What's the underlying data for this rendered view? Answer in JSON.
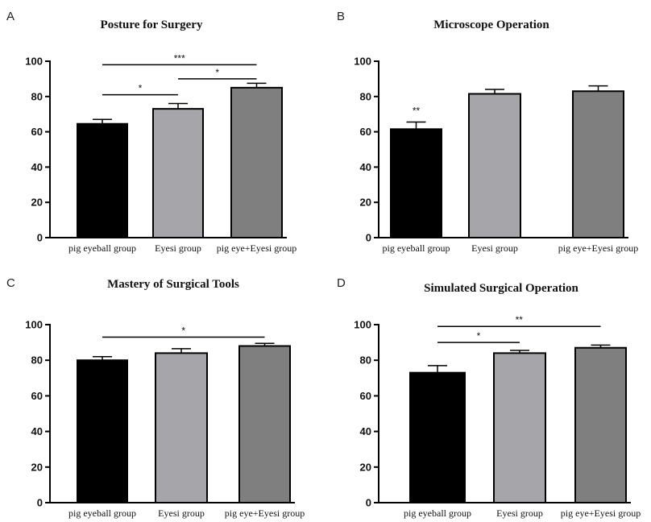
{
  "chart_data": [
    {
      "panel": "A",
      "type": "bar",
      "title": "Posture for Surgery",
      "categories": [
        "pig eyeball group",
        "Eyesi group",
        "pig eye+Eyesi group"
      ],
      "values": [
        64.5,
        73,
        85
      ],
      "errors": [
        2.5,
        3,
        2.5
      ],
      "colors": [
        "#000000",
        "#a6a6aa",
        "#7f7f7f"
      ],
      "ylim": [
        0,
        100
      ],
      "yticks": [
        0,
        20,
        40,
        60,
        80,
        100
      ],
      "significance": [
        {
          "from": 0,
          "to": 1,
          "label": "*",
          "y": 81
        },
        {
          "from": 1,
          "to": 2,
          "label": "*",
          "y": 90
        },
        {
          "from": 0,
          "to": 2,
          "label": "***",
          "y": 98
        }
      ]
    },
    {
      "panel": "B",
      "type": "bar",
      "title": "Microscope Operation",
      "categories": [
        "pig eyeball group",
        "Eyesi group",
        "pig eye+Eyesi group"
      ],
      "values": [
        61.5,
        81.5,
        83
      ],
      "errors": [
        4,
        2.5,
        3
      ],
      "colors": [
        "#000000",
        "#a6a6aa",
        "#7f7f7f"
      ],
      "ylim": [
        0,
        100
      ],
      "yticks": [
        0,
        20,
        40,
        60,
        80,
        100
      ],
      "significance": [
        {
          "over": 0,
          "label": "**"
        }
      ]
    },
    {
      "panel": "C",
      "type": "bar",
      "title": "Mastery of Surgical Tools",
      "categories": [
        "pig eyeball group",
        "Eyesi group",
        "pig eye+Eyesi group"
      ],
      "values": [
        80,
        84,
        88
      ],
      "errors": [
        2,
        2.5,
        1.5
      ],
      "colors": [
        "#000000",
        "#a6a6aa",
        "#7f7f7f"
      ],
      "ylim": [
        0,
        100
      ],
      "yticks": [
        0,
        20,
        40,
        60,
        80,
        100
      ],
      "significance": [
        {
          "from": 0,
          "to": 2,
          "label": "*",
          "y": 93
        }
      ]
    },
    {
      "panel": "D",
      "type": "bar",
      "title": "Simulated Surgical Operation",
      "categories": [
        "pig eyeball group",
        "Eyesi group",
        "pig eye+Eyesi group"
      ],
      "values": [
        73,
        84,
        87
      ],
      "errors": [
        4,
        1.5,
        1.5
      ],
      "colors": [
        "#000000",
        "#a6a6aa",
        "#7f7f7f"
      ],
      "ylim": [
        0,
        100
      ],
      "yticks": [
        0,
        20,
        40,
        60,
        80,
        100
      ],
      "significance": [
        {
          "from": 0,
          "to": 1,
          "label": "*",
          "y": 90
        },
        {
          "from": 0,
          "to": 2,
          "label": "**",
          "y": 99
        }
      ]
    }
  ]
}
